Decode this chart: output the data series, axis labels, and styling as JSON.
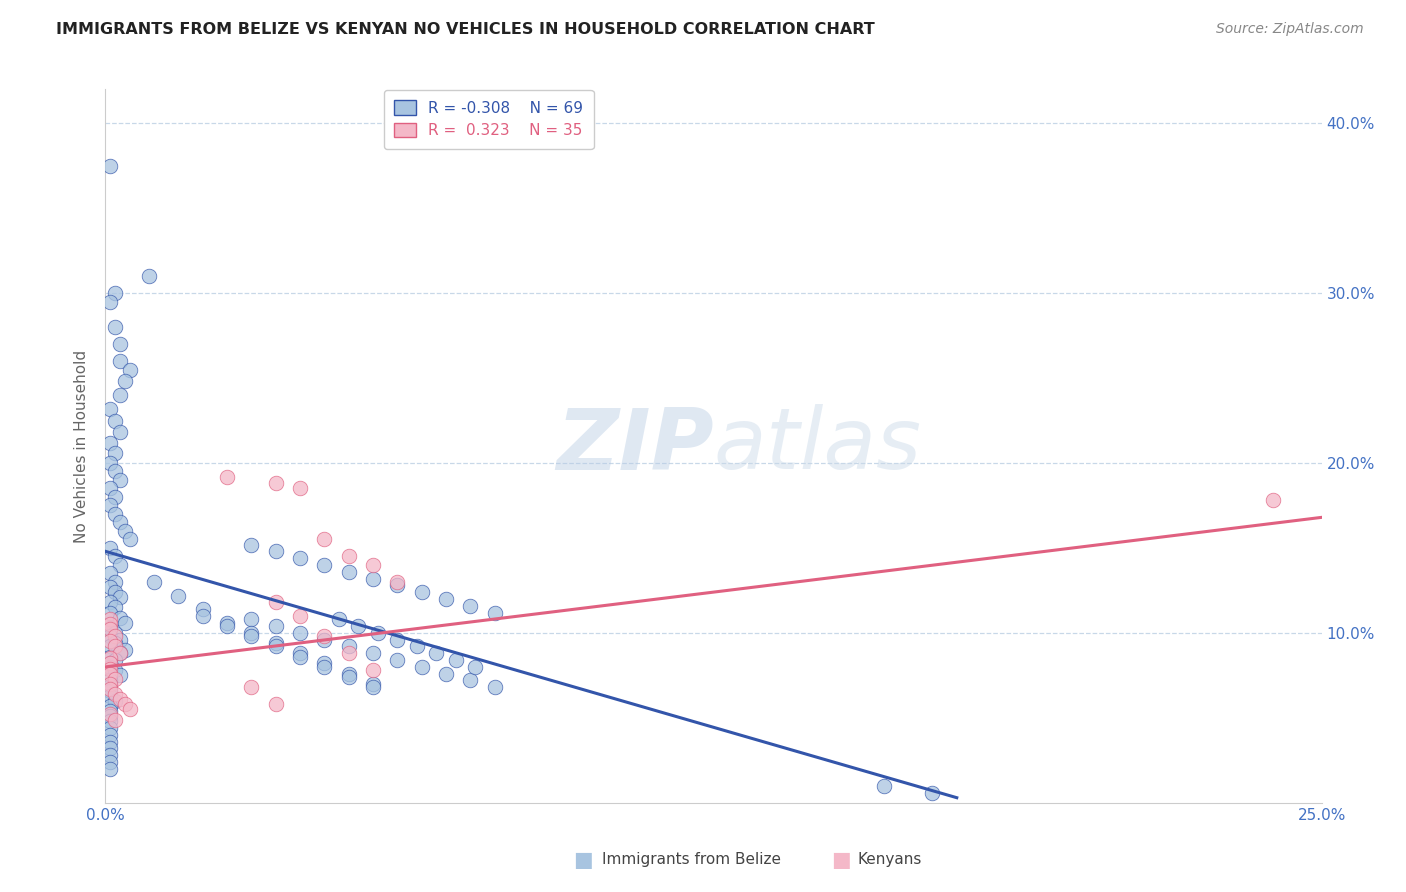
{
  "title": "IMMIGRANTS FROM BELIZE VS KENYAN NO VEHICLES IN HOUSEHOLD CORRELATION CHART",
  "source": "Source: ZipAtlas.com",
  "ylabel": "No Vehicles in Household",
  "xlim": [
    0.0,
    0.25
  ],
  "ylim": [
    0.0,
    0.42
  ],
  "color_blue": "#a8c4e0",
  "color_pink": "#f4b8c8",
  "line_blue": "#3355aa",
  "line_pink": "#e06080",
  "watermark_zip": "ZIP",
  "watermark_atlas": "atlas",
  "background_color": "#ffffff",
  "grid_color": "#c8d8e8",
  "axis_label_color": "#4472c4",
  "blue_scatter_x": [
    0.001,
    0.009,
    0.002,
    0.001,
    0.002,
    0.003,
    0.003,
    0.005,
    0.004,
    0.003,
    0.001,
    0.002,
    0.003,
    0.001,
    0.002,
    0.001,
    0.002,
    0.003,
    0.001,
    0.002,
    0.001,
    0.002,
    0.003,
    0.004,
    0.005,
    0.001,
    0.002,
    0.003,
    0.001,
    0.002,
    0.001,
    0.002,
    0.003,
    0.001,
    0.002,
    0.001,
    0.003,
    0.004,
    0.001,
    0.002,
    0.001,
    0.003,
    0.002,
    0.001,
    0.004,
    0.003,
    0.001,
    0.002,
    0.001,
    0.001,
    0.002,
    0.003,
    0.001,
    0.001,
    0.001,
    0.001,
    0.002,
    0.001,
    0.001,
    0.001,
    0.001,
    0.001,
    0.001,
    0.001,
    0.001,
    0.001,
    0.001,
    0.001,
    0.03,
    0.035,
    0.04,
    0.045,
    0.05,
    0.055,
    0.06,
    0.065,
    0.07,
    0.075,
    0.08,
    0.03,
    0.035,
    0.04,
    0.045,
    0.05,
    0.055,
    0.06,
    0.065,
    0.07,
    0.075,
    0.08,
    0.048,
    0.052,
    0.056,
    0.06,
    0.064,
    0.068,
    0.072,
    0.076,
    0.01,
    0.015,
    0.02,
    0.025,
    0.03,
    0.035,
    0.04,
    0.045,
    0.05,
    0.055,
    0.02,
    0.025,
    0.03,
    0.035,
    0.04,
    0.045,
    0.05,
    0.055,
    0.16,
    0.17
  ],
  "blue_scatter_y": [
    0.375,
    0.31,
    0.3,
    0.295,
    0.28,
    0.27,
    0.26,
    0.255,
    0.248,
    0.24,
    0.232,
    0.225,
    0.218,
    0.212,
    0.206,
    0.2,
    0.195,
    0.19,
    0.185,
    0.18,
    0.175,
    0.17,
    0.165,
    0.16,
    0.155,
    0.15,
    0.145,
    0.14,
    0.135,
    0.13,
    0.127,
    0.124,
    0.121,
    0.118,
    0.115,
    0.112,
    0.109,
    0.106,
    0.103,
    0.1,
    0.098,
    0.096,
    0.094,
    0.092,
    0.09,
    0.088,
    0.086,
    0.084,
    0.082,
    0.08,
    0.078,
    0.075,
    0.072,
    0.069,
    0.066,
    0.063,
    0.06,
    0.057,
    0.054,
    0.051,
    0.048,
    0.044,
    0.04,
    0.036,
    0.032,
    0.028,
    0.024,
    0.02,
    0.152,
    0.148,
    0.144,
    0.14,
    0.136,
    0.132,
    0.128,
    0.124,
    0.12,
    0.116,
    0.112,
    0.108,
    0.104,
    0.1,
    0.096,
    0.092,
    0.088,
    0.084,
    0.08,
    0.076,
    0.072,
    0.068,
    0.108,
    0.104,
    0.1,
    0.096,
    0.092,
    0.088,
    0.084,
    0.08,
    0.13,
    0.122,
    0.114,
    0.106,
    0.1,
    0.094,
    0.088,
    0.082,
    0.076,
    0.07,
    0.11,
    0.104,
    0.098,
    0.092,
    0.086,
    0.08,
    0.074,
    0.068,
    0.01,
    0.006
  ],
  "pink_scatter_x": [
    0.001,
    0.001,
    0.001,
    0.002,
    0.001,
    0.002,
    0.003,
    0.001,
    0.001,
    0.001,
    0.001,
    0.002,
    0.001,
    0.001,
    0.002,
    0.003,
    0.004,
    0.005,
    0.001,
    0.002,
    0.025,
    0.035,
    0.04,
    0.045,
    0.05,
    0.055,
    0.06,
    0.035,
    0.04,
    0.045,
    0.05,
    0.055,
    0.03,
    0.035,
    0.24
  ],
  "pink_scatter_y": [
    0.108,
    0.105,
    0.102,
    0.098,
    0.095,
    0.092,
    0.088,
    0.085,
    0.082,
    0.079,
    0.076,
    0.073,
    0.07,
    0.067,
    0.064,
    0.061,
    0.058,
    0.055,
    0.052,
    0.049,
    0.192,
    0.188,
    0.185,
    0.155,
    0.145,
    0.14,
    0.13,
    0.118,
    0.11,
    0.098,
    0.088,
    0.078,
    0.068,
    0.058,
    0.178
  ],
  "blue_line_x": [
    0.0,
    0.175
  ],
  "blue_line_y": [
    0.148,
    0.003
  ],
  "pink_line_x": [
    0.0,
    0.25
  ],
  "pink_line_y": [
    0.08,
    0.168
  ]
}
